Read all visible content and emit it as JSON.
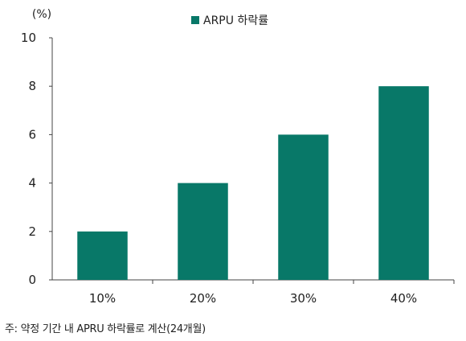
{
  "chart_data": {
    "type": "bar",
    "title": "",
    "legend": {
      "label": "ARPU 하락률",
      "position": "top-center"
    },
    "ylabel": "(%)",
    "xlabel": "",
    "categories": [
      "10%",
      "20%",
      "30%",
      "40%"
    ],
    "series": [
      {
        "name": "ARPU 하락률",
        "values": [
          2,
          4,
          6,
          8
        ]
      }
    ],
    "ylim": [
      0,
      10
    ],
    "yticks": [
      0,
      2,
      4,
      6,
      8,
      10
    ],
    "grid": false,
    "colors": {
      "bar": "#087868",
      "axis": "#444444",
      "text": "#222222"
    }
  },
  "footnote": "주: 약정 기간 내 APRU 하락률로 계산(24개월)"
}
